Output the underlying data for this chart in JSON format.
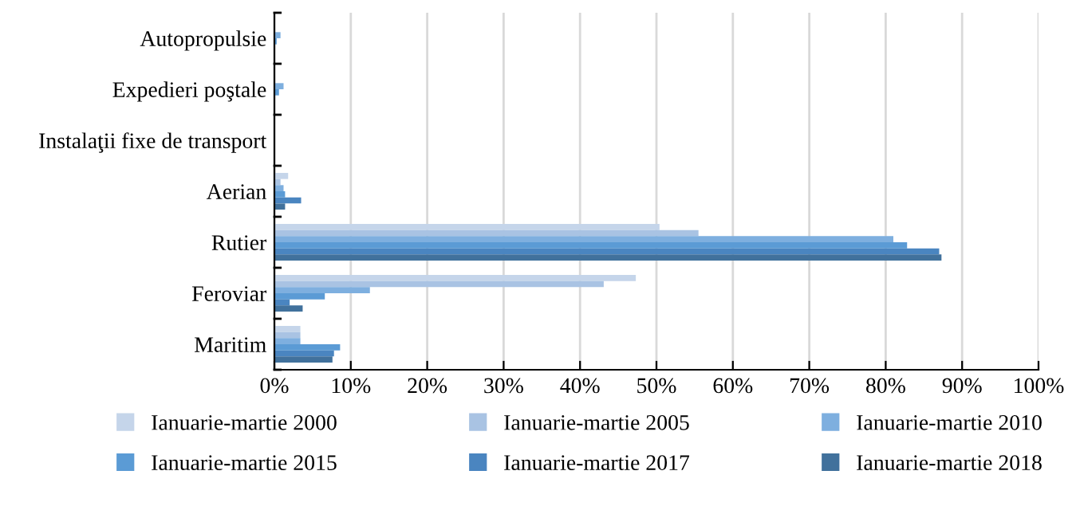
{
  "chart_data": {
    "type": "bar",
    "orientation": "horizontal",
    "categories": [
      "Autopropulsie",
      "Expedieri poştale",
      "Instalaţii fixe de transport",
      "Aerian",
      "Rutier",
      "Feroviar",
      "Maritim"
    ],
    "series": [
      {
        "name": "Ianuarie-martie 2000",
        "color": "#c5d5ea",
        "values": [
          0.1,
          0.1,
          0,
          1.8,
          50.4,
          47.3,
          3.4
        ]
      },
      {
        "name": "Ianuarie-martie 2005",
        "color": "#a9c3e3",
        "values": [
          null,
          0.1,
          null,
          0.8,
          55.5,
          43.1,
          3.4
        ]
      },
      {
        "name": "Ianuarie-martie 2010",
        "color": "#7eafdf",
        "values": [
          0.8,
          1.2,
          0,
          1.2,
          81.0,
          12.5,
          3.4
        ]
      },
      {
        "name": "Ianuarie-martie 2015",
        "color": "#5b9bd5",
        "values": [
          0.3,
          0.6,
          0,
          1.4,
          82.8,
          6.6,
          8.6
        ]
      },
      {
        "name": "Ianuarie-martie 2017",
        "color": "#4a85c0",
        "values": [
          0,
          0,
          0,
          3.5,
          87.0,
          2.0,
          7.8
        ]
      },
      {
        "name": "Ianuarie-martie 2018",
        "color": "#41719c",
        "values": [
          0,
          0,
          0,
          1.4,
          87.3,
          3.7,
          7.6
        ]
      }
    ],
    "xlim": [
      0,
      100
    ],
    "xticks": [
      {
        "value": 0,
        "label": "0%"
      },
      {
        "value": 10,
        "label": "10%"
      },
      {
        "value": 20,
        "label": "20%"
      },
      {
        "value": 30,
        "label": "30%"
      },
      {
        "value": 40,
        "label": "40%"
      },
      {
        "value": 50,
        "label": "50%"
      },
      {
        "value": 60,
        "label": "60%"
      },
      {
        "value": 70,
        "label": "70%"
      },
      {
        "value": 80,
        "label": "80%"
      },
      {
        "value": 90,
        "label": "90%"
      },
      {
        "value": 100,
        "label": "100%"
      }
    ],
    "grid": "x",
    "legend": "bottom"
  }
}
